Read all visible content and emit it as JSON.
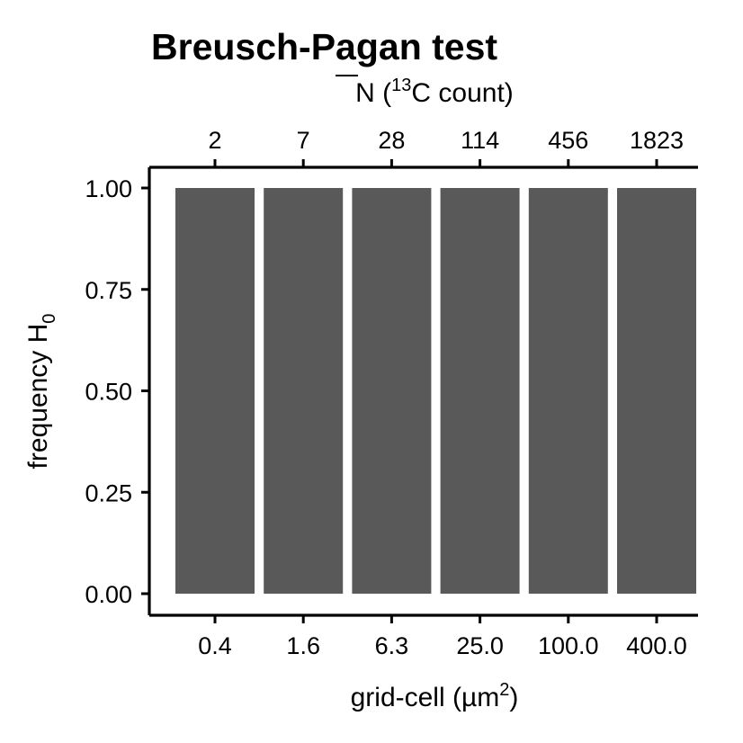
{
  "chart_data": {
    "type": "bar",
    "title": "Breusch-Pagan test",
    "xlabel": "grid-cell (µm²)",
    "xlabel_main": "grid-cell (µm",
    "xlabel_sup": "2",
    "xlabel_close": ")",
    "x2label": "N̄ (¹³C count)",
    "x2label_main": "N",
    "x2label_open": " (",
    "x2label_sup": "13",
    "x2label_rest": "C count)",
    "ylabel": "frequency H₀",
    "ylabel_main": "frequency H",
    "ylabel_sub": "0",
    "categories": [
      "0.4",
      "1.6",
      "6.3",
      "25.0",
      "100.0",
      "400.0"
    ],
    "top_categories": [
      "2",
      "7",
      "28",
      "114",
      "456",
      "1823"
    ],
    "values": [
      1.0,
      1.0,
      1.0,
      1.0,
      1.0,
      1.0
    ],
    "ylim": [
      0,
      1
    ],
    "yticks": [
      "0.00",
      "0.25",
      "0.50",
      "0.75",
      "1.00"
    ],
    "bar_color": "#595959",
    "grid": false,
    "legend": "none"
  }
}
